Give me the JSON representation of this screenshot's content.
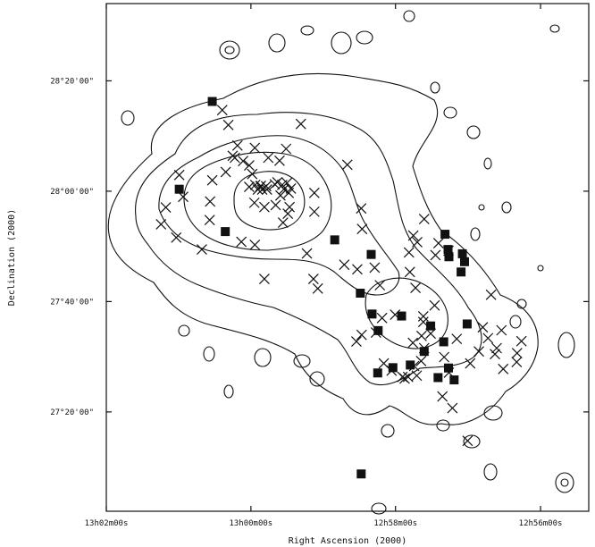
{
  "chart_data": {
    "type": "scatter",
    "title": "",
    "xlabel": "Right Ascension (2000)",
    "ylabel": "Declination (2000)",
    "x_ticks": [
      "13h02m00s",
      "13h00m00s",
      "12h58m00s",
      "12h56m00s"
    ],
    "y_ticks": [
      "28°20'00\"",
      "28°00'00\"",
      "27°40'00\"",
      "27°20'00\""
    ],
    "x_tick_values": [
      13.0333,
      13.0,
      12.9667,
      12.9333
    ],
    "y_tick_values": [
      28.3333,
      28.0,
      27.6667,
      27.3333
    ],
    "xlim": [
      13.0333,
      12.9222
    ],
    "ylim": [
      27.0333,
      28.5667
    ],
    "grid": false,
    "series": [
      {
        "marker": "cross",
        "points": [
          [
            13.0066,
            28.245
          ],
          [
            13.0052,
            28.2
          ],
          [
            12.9885,
            28.203
          ],
          [
            13.0165,
            28.049
          ],
          [
            13.0156,
            27.983
          ],
          [
            13.0095,
            27.913
          ],
          [
            13.0172,
            27.86
          ],
          [
            13.0207,
            27.9
          ],
          [
            13.0196,
            27.951
          ],
          [
            13.0113,
            27.824
          ],
          [
            13.0022,
            27.847
          ],
          [
            12.9991,
            27.838
          ],
          [
            13.0094,
            27.969
          ],
          [
            13.0089,
            28.033
          ],
          [
            13.0058,
            28.058
          ],
          [
            13.0042,
            28.107
          ],
          [
            13.0031,
            28.138
          ],
          [
            12.9991,
            28.131
          ],
          [
            12.996,
            28.101
          ],
          [
            12.9934,
            28.092
          ],
          [
            12.9919,
            28.128
          ],
          [
            12.9917,
            28.025
          ],
          [
            12.9854,
            27.995
          ],
          [
            12.9854,
            27.938
          ],
          [
            12.9871,
            27.812
          ],
          [
            12.9969,
            27.735
          ],
          [
            12.9846,
            27.706
          ],
          [
            12.9856,
            27.735
          ],
          [
            12.9908,
            28.008
          ],
          [
            12.9974,
            28.005
          ],
          [
            13.0004,
            28.013
          ],
          [
            13.0037,
            28.101
          ],
          [
            13.0018,
            28.091
          ],
          [
            13.0004,
            28.078
          ],
          [
            12.9997,
            28.052
          ],
          [
            12.999,
            28.019
          ],
          [
            12.9977,
            28.016
          ],
          [
            12.9963,
            28.005
          ],
          [
            12.9945,
            28.021
          ],
          [
            12.9939,
            28.027
          ],
          [
            12.9928,
            28.019
          ],
          [
            12.9924,
            28.006
          ],
          [
            12.9913,
            27.995
          ],
          [
            12.9911,
            27.952
          ],
          [
            12.9915,
            27.932
          ],
          [
            12.9926,
            27.905
          ],
          [
            12.9943,
            27.958
          ],
          [
            12.9969,
            27.952
          ],
          [
            12.9992,
            27.965
          ],
          [
            12.9984,
            28.005
          ],
          [
            12.9965,
            28.015
          ],
          [
            12.9978,
            28.015
          ],
          [
            12.9932,
            27.987
          ],
          [
            12.9778,
            28.08
          ],
          [
            12.9746,
            27.948
          ],
          [
            12.9744,
            27.886
          ],
          [
            12.9785,
            27.778
          ],
          [
            12.9755,
            27.764
          ],
          [
            12.9715,
            27.769
          ],
          [
            12.9703,
            27.716
          ],
          [
            12.9668,
            27.627
          ],
          [
            12.9698,
            27.617
          ],
          [
            12.9712,
            27.573
          ],
          [
            12.9745,
            27.566
          ],
          [
            12.9757,
            27.546
          ],
          [
            12.9694,
            27.48
          ],
          [
            12.9676,
            27.458
          ],
          [
            12.9651,
            27.439
          ],
          [
            12.9646,
            27.434
          ],
          [
            12.9638,
            27.439
          ],
          [
            12.9618,
            27.443
          ],
          [
            12.9624,
            27.472
          ],
          [
            12.9608,
            27.487
          ],
          [
            12.9601,
            27.526
          ],
          [
            12.9627,
            27.542
          ],
          [
            12.9607,
            27.563
          ],
          [
            12.9586,
            27.57
          ],
          [
            12.9603,
            27.605
          ],
          [
            12.9603,
            27.622
          ],
          [
            12.9577,
            27.655
          ],
          [
            12.9621,
            27.708
          ],
          [
            12.9634,
            27.756
          ],
          [
            12.9636,
            27.815
          ],
          [
            12.9617,
            27.846
          ],
          [
            12.9626,
            27.866
          ],
          [
            12.9568,
            27.843
          ],
          [
            12.9575,
            27.807
          ],
          [
            12.9545,
            27.82
          ],
          [
            12.9601,
            27.916
          ],
          [
            12.9555,
            27.499
          ],
          [
            12.9544,
            27.452
          ],
          [
            12.9495,
            27.48
          ],
          [
            12.9475,
            27.516
          ],
          [
            12.9466,
            27.589
          ],
          [
            12.9423,
            27.58
          ],
          [
            12.9434,
            27.526
          ],
          [
            12.9438,
            27.508
          ],
          [
            12.9419,
            27.463
          ],
          [
            12.9387,
            27.511
          ],
          [
            12.9388,
            27.484
          ],
          [
            12.9377,
            27.547
          ],
          [
            12.9447,
            27.687
          ],
          [
            12.9526,
            27.554
          ],
          [
            12.9454,
            27.556
          ],
          [
            12.9559,
            27.38
          ],
          [
            12.9536,
            27.345
          ],
          [
            12.9501,
            27.246
          ]
        ]
      },
      {
        "marker": "filled-square",
        "points": [
          [
            13.0089,
            28.271
          ],
          [
            13.0165,
            28.006
          ],
          [
            13.0059,
            27.878
          ],
          [
            12.9807,
            27.853
          ],
          [
            12.9723,
            27.809
          ],
          [
            12.9748,
            27.692
          ],
          [
            12.9721,
            27.629
          ],
          [
            12.9707,
            27.579
          ],
          [
            12.9653,
            27.623
          ],
          [
            12.9553,
            27.87
          ],
          [
            12.9546,
            27.824
          ],
          [
            12.9544,
            27.802
          ],
          [
            12.9513,
            27.811
          ],
          [
            12.9508,
            27.787
          ],
          [
            12.9516,
            27.756
          ],
          [
            12.9502,
            27.599
          ],
          [
            12.9586,
            27.593
          ],
          [
            12.9556,
            27.545
          ],
          [
            12.9601,
            27.516
          ],
          [
            12.9633,
            27.475
          ],
          [
            12.9673,
            27.467
          ],
          [
            12.9708,
            27.451
          ],
          [
            12.9569,
            27.437
          ],
          [
            12.9532,
            27.43
          ],
          [
            12.9545,
            27.466
          ],
          [
            12.9746,
            27.146
          ]
        ]
      }
    ]
  }
}
